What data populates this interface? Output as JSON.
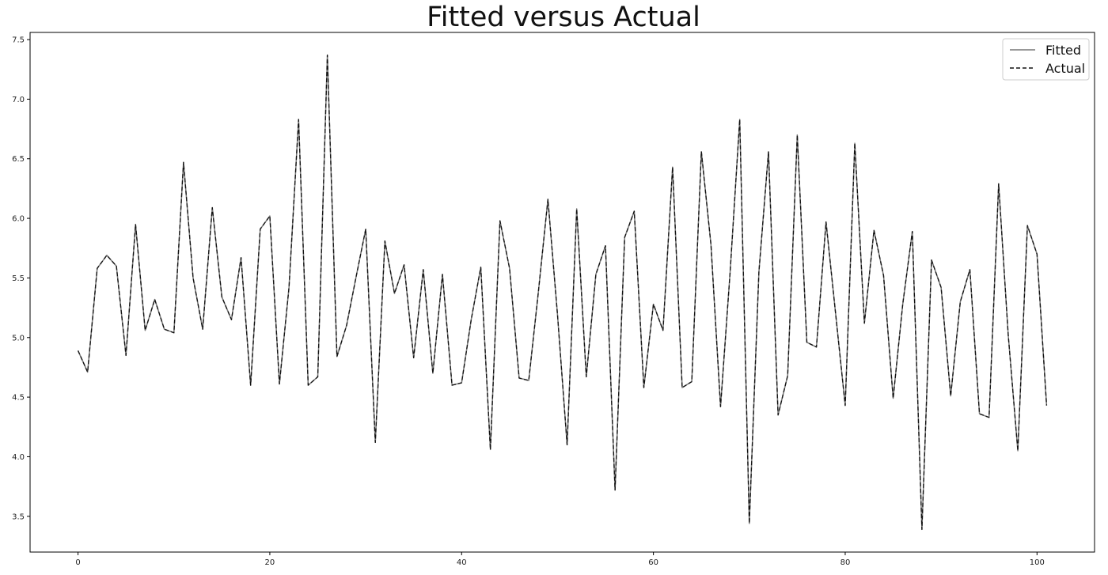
{
  "chart_data": {
    "type": "line",
    "title": "Fitted versus Actual",
    "xlim": [
      -5,
      106
    ],
    "ylim": [
      3.2,
      7.56
    ],
    "xticks": [
      0,
      20,
      40,
      60,
      80,
      100
    ],
    "yticks": [
      3.5,
      4.0,
      4.5,
      5.0,
      5.5,
      6.0,
      6.5,
      7.0,
      7.5
    ],
    "legend_position": "top-right",
    "grid": false,
    "series": [
      {
        "name": "Fitted",
        "style": "solid",
        "color": "#777777",
        "values": [
          4.89,
          4.71,
          5.58,
          5.69,
          5.6,
          4.85,
          5.95,
          5.06,
          5.32,
          5.07,
          5.04,
          6.47,
          5.5,
          5.07,
          6.09,
          5.34,
          5.15,
          5.67,
          4.6,
          5.91,
          6.02,
          4.61,
          5.42,
          6.83,
          4.6,
          4.67,
          7.37,
          4.84,
          5.1,
          5.51,
          5.91,
          4.12,
          5.81,
          5.37,
          5.61,
          4.83,
          5.57,
          4.7,
          5.53,
          4.6,
          4.62,
          5.15,
          5.59,
          4.06,
          5.98,
          5.58,
          4.66,
          4.64,
          5.38,
          6.16,
          5.19,
          4.1,
          6.08,
          4.67,
          5.53,
          5.77,
          3.72,
          5.84,
          6.06,
          4.58,
          5.28,
          5.06,
          6.43,
          4.58,
          4.63,
          6.56,
          5.78,
          4.42,
          5.55,
          6.83,
          3.44,
          5.55,
          6.56,
          4.35,
          4.68,
          6.7,
          4.96,
          4.92,
          5.97,
          5.2,
          4.43,
          6.63,
          5.12,
          5.9,
          5.52,
          4.49,
          5.28,
          5.89,
          3.39,
          5.65,
          5.42,
          4.51,
          5.3,
          5.57,
          4.36,
          4.33,
          6.29,
          5.02,
          4.05,
          5.94,
          5.7,
          4.43
        ]
      },
      {
        "name": "Actual",
        "style": "dashed",
        "color": "#111111",
        "values": [
          4.89,
          4.71,
          5.58,
          5.69,
          5.6,
          4.85,
          5.95,
          5.06,
          5.32,
          5.07,
          5.04,
          6.47,
          5.5,
          5.07,
          6.09,
          5.34,
          5.15,
          5.67,
          4.6,
          5.91,
          6.02,
          4.61,
          5.42,
          6.83,
          4.6,
          4.67,
          7.37,
          4.84,
          5.1,
          5.51,
          5.91,
          4.12,
          5.81,
          5.37,
          5.61,
          4.83,
          5.57,
          4.7,
          5.53,
          4.6,
          4.62,
          5.15,
          5.59,
          4.06,
          5.98,
          5.58,
          4.66,
          4.64,
          5.38,
          6.16,
          5.19,
          4.1,
          6.08,
          4.67,
          5.53,
          5.77,
          3.72,
          5.84,
          6.06,
          4.58,
          5.28,
          5.06,
          6.43,
          4.58,
          4.63,
          6.56,
          5.78,
          4.42,
          5.55,
          6.83,
          3.44,
          5.55,
          6.56,
          4.35,
          4.68,
          6.7,
          4.96,
          4.92,
          5.97,
          5.2,
          4.43,
          6.63,
          5.12,
          5.9,
          5.52,
          4.49,
          5.28,
          5.89,
          3.39,
          5.65,
          5.42,
          4.51,
          5.3,
          5.57,
          4.36,
          4.33,
          6.29,
          5.02,
          4.05,
          5.94,
          5.7,
          4.43
        ]
      }
    ]
  }
}
